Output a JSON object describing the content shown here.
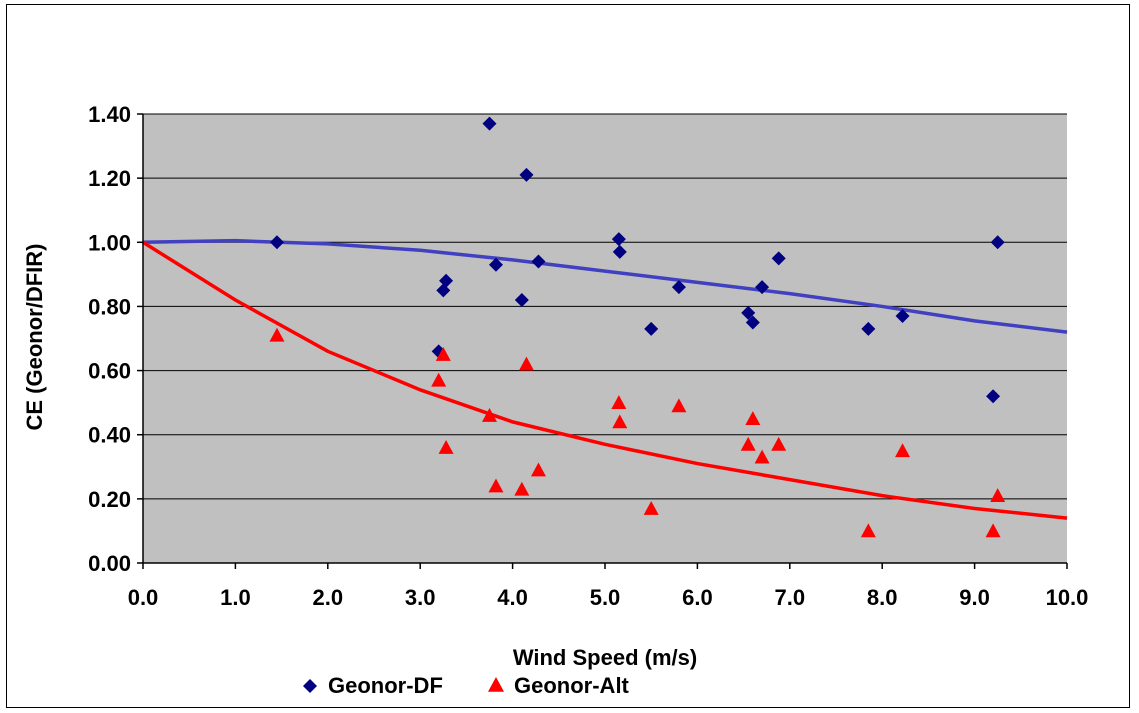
{
  "chart_data": {
    "type": "scatter",
    "title": "",
    "xlabel": "Wind Speed (m/s)",
    "ylabel": "CE (Geonor/DFIR)",
    "xlim": [
      0,
      10
    ],
    "ylim": [
      0,
      1.4
    ],
    "x_ticks": [
      "0.0",
      "1.0",
      "2.0",
      "3.0",
      "4.0",
      "5.0",
      "6.0",
      "7.0",
      "8.0",
      "9.0",
      "10.0"
    ],
    "y_ticks": [
      "0.00",
      "0.20",
      "0.40",
      "0.60",
      "0.80",
      "1.00",
      "1.20",
      "1.40"
    ],
    "grid": "horizontal",
    "plot_background": "#c0c0c0",
    "legend_position": "bottom",
    "series": [
      {
        "name": "Geonor-DF",
        "marker": "diamond",
        "color": "#000080",
        "points": [
          [
            1.45,
            1.0
          ],
          [
            3.2,
            0.66
          ],
          [
            3.25,
            0.85
          ],
          [
            3.28,
            0.88
          ],
          [
            3.75,
            1.37
          ],
          [
            3.82,
            0.93
          ],
          [
            4.1,
            0.82
          ],
          [
            4.15,
            1.21
          ],
          [
            4.28,
            0.94
          ],
          [
            5.15,
            1.01
          ],
          [
            5.16,
            0.97
          ],
          [
            5.5,
            0.73
          ],
          [
            5.8,
            0.86
          ],
          [
            6.55,
            0.78
          ],
          [
            6.6,
            0.75
          ],
          [
            6.7,
            0.86
          ],
          [
            6.88,
            0.95
          ],
          [
            7.85,
            0.73
          ],
          [
            8.22,
            0.77
          ],
          [
            9.2,
            0.52
          ],
          [
            9.25,
            1.0
          ]
        ]
      },
      {
        "name": "Geonor-Alt",
        "marker": "triangle",
        "color": "#ff0000",
        "points": [
          [
            1.45,
            0.71
          ],
          [
            3.2,
            0.57
          ],
          [
            3.25,
            0.65
          ],
          [
            3.28,
            0.36
          ],
          [
            3.75,
            0.46
          ],
          [
            3.82,
            0.24
          ],
          [
            4.1,
            0.23
          ],
          [
            4.15,
            0.62
          ],
          [
            4.28,
            0.29
          ],
          [
            5.15,
            0.5
          ],
          [
            5.16,
            0.44
          ],
          [
            5.5,
            0.17
          ],
          [
            5.8,
            0.49
          ],
          [
            6.55,
            0.37
          ],
          [
            6.6,
            0.45
          ],
          [
            6.7,
            0.33
          ],
          [
            6.88,
            0.37
          ],
          [
            7.85,
            0.1
          ],
          [
            8.22,
            0.35
          ],
          [
            9.2,
            0.1
          ],
          [
            9.25,
            0.21
          ]
        ]
      }
    ],
    "fit_lines": [
      {
        "series": "Geonor-DF",
        "color": "#4040c0",
        "points": [
          [
            0,
            1.0
          ],
          [
            1,
            1.005
          ],
          [
            2,
            0.995
          ],
          [
            3,
            0.975
          ],
          [
            4,
            0.945
          ],
          [
            5,
            0.91
          ],
          [
            6,
            0.875
          ],
          [
            7,
            0.84
          ],
          [
            8,
            0.8
          ],
          [
            9,
            0.755
          ],
          [
            10,
            0.72
          ]
        ]
      },
      {
        "series": "Geonor-Alt",
        "color": "#ff0000",
        "points": [
          [
            0,
            1.0
          ],
          [
            1,
            0.82
          ],
          [
            2,
            0.66
          ],
          [
            3,
            0.54
          ],
          [
            4,
            0.44
          ],
          [
            5,
            0.37
          ],
          [
            6,
            0.31
          ],
          [
            7,
            0.26
          ],
          [
            8,
            0.21
          ],
          [
            9,
            0.17
          ],
          [
            10,
            0.14
          ]
        ]
      }
    ]
  }
}
